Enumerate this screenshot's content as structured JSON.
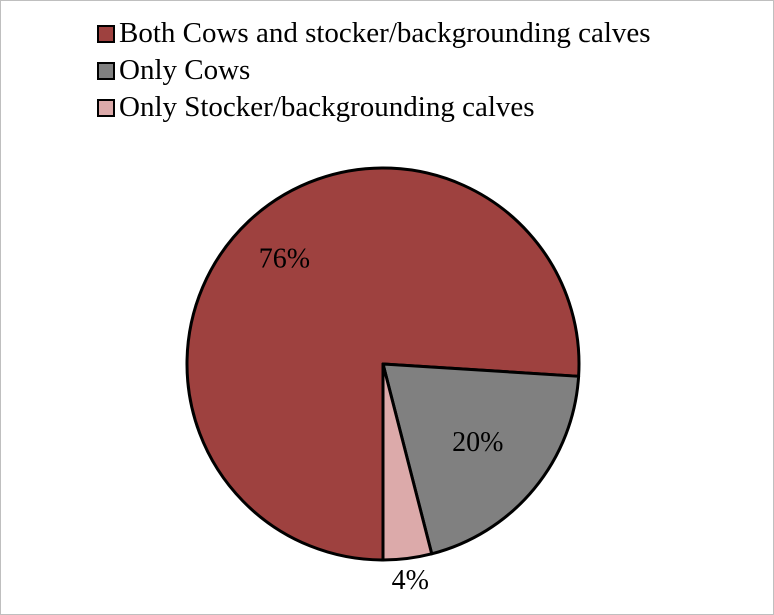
{
  "chart_data": {
    "type": "pie",
    "title": "",
    "legend_position": "top",
    "series": [
      {
        "name": "Both Cows and stocker/backgrounding calves",
        "value": 76,
        "label": "76%",
        "color": "#9e413f"
      },
      {
        "name": "Only Cows",
        "value": 20,
        "label": "20%",
        "color": "#808080"
      },
      {
        "name": "Only Stocker/backgrounding calves",
        "value": 4,
        "label": "4%",
        "color": "#dcaaaa"
      }
    ]
  }
}
